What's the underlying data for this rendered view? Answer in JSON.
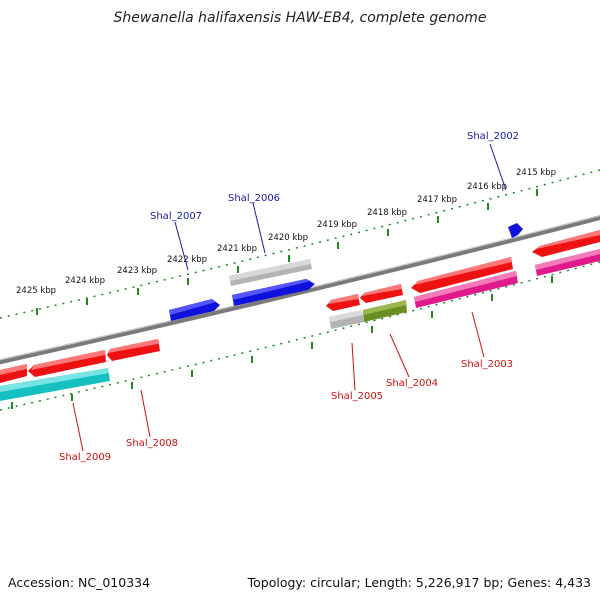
{
  "title": "Shewanella halifaxensis HAW-EB4, complete genome",
  "footer": {
    "accession": "Accession: NC_010334",
    "stats": "Topology: circular; Length: 5,226,917 bp; Genes: 4,433"
  },
  "scale_labels": [
    "2425 kbp",
    "2424 kbp",
    "2423 kbp",
    "2422 kbp",
    "2421 kbp",
    "2420 kbp",
    "2419 kbp",
    "2418 kbp",
    "2417 kbp",
    "2416 kbp",
    "2415 kbp"
  ],
  "gene_labels": {
    "shal_2002": "Shal_2002",
    "shal_2003": "Shal_2003",
    "shal_2004": "Shal_2004",
    "shal_2005": "Shal_2005",
    "shal_2006": "Shal_2006",
    "shal_2007": "Shal_2007",
    "shal_2008": "Shal_2008",
    "shal_2009": "Shal_2009"
  },
  "colors": {
    "backbone": "#888888",
    "ticks": "#1e8a1e",
    "red": "#ee1111",
    "blue": "#1111dd",
    "grey": "#b4b4b4",
    "magenta": "#e01a8a",
    "cyan": "#15c0c0",
    "olive": "#6b8e23",
    "label_blue": "#1a1aa6",
    "label_red": "#cc1111"
  }
}
